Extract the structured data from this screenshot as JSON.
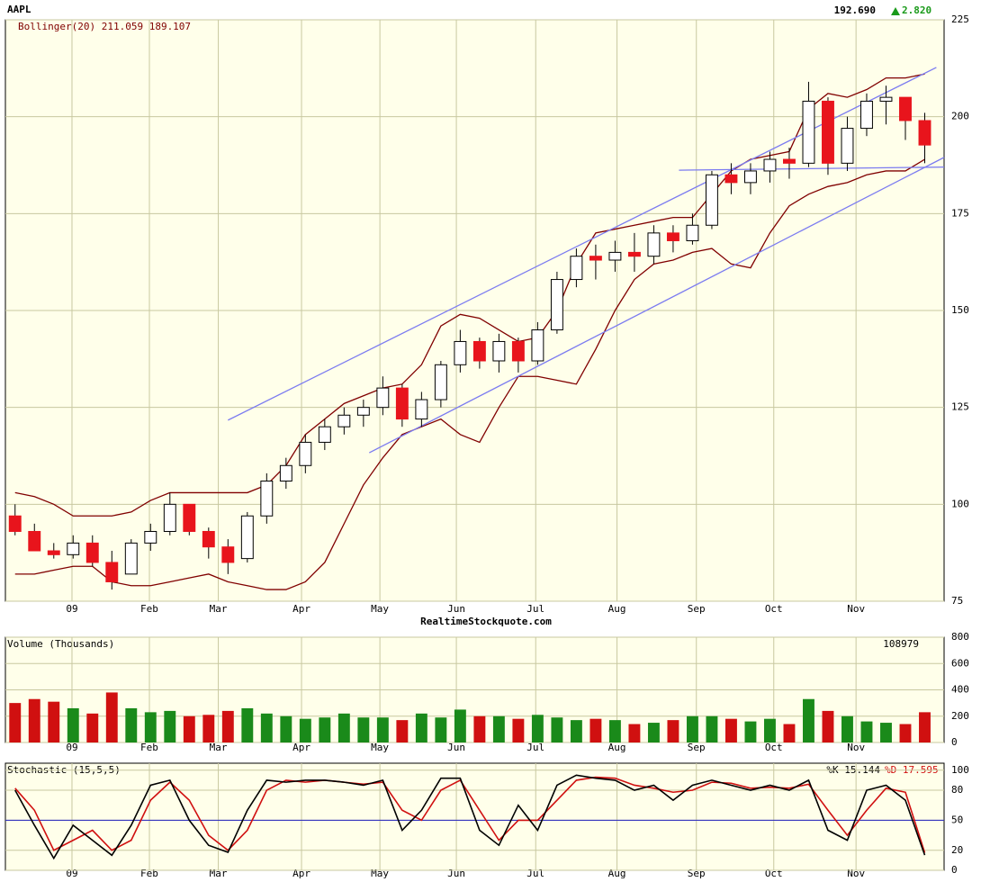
{
  "chart_data": [
    {
      "type": "candlestick",
      "symbol": "AAPL",
      "last": "192.690",
      "change": "2.820",
      "indicator": "Bollinger(20) 211.059 189.107",
      "source": "RealtimeStockquote.com",
      "xlim": [
        0,
        48.5
      ],
      "xticks": [
        {
          "value": 3.44,
          "label": "09"
        },
        {
          "value": 7.44,
          "label": "Feb"
        },
        {
          "value": 11.0,
          "label": "Mar"
        },
        {
          "value": 15.3,
          "label": "Apr"
        },
        {
          "value": 19.35,
          "label": "May"
        },
        {
          "value": 23.3,
          "label": "Jun"
        },
        {
          "value": 27.4,
          "label": "Jul"
        },
        {
          "value": 31.6,
          "label": "Aug"
        },
        {
          "value": 35.7,
          "label": "Sep"
        },
        {
          "value": 39.7,
          "label": "Oct"
        },
        {
          "value": 43.95,
          "label": "Nov"
        }
      ],
      "ylim": [
        75,
        225
      ],
      "yticks": [
        75,
        100,
        125,
        150,
        175,
        200,
        225
      ],
      "grid": true,
      "open": [
        97,
        93,
        88,
        87,
        90,
        85,
        82,
        90,
        93,
        100,
        93,
        89,
        86,
        97,
        106,
        110,
        116,
        120,
        123,
        125,
        130,
        122,
        127,
        136,
        142,
        137,
        142,
        137,
        145,
        158,
        164,
        163,
        165,
        164,
        170,
        168,
        172,
        185,
        183,
        186,
        189,
        188,
        204,
        188,
        197,
        204,
        205,
        199
      ],
      "high": [
        100,
        95,
        90,
        92,
        92,
        88,
        91,
        95,
        103,
        100,
        94,
        91,
        98,
        108,
        112,
        118,
        122,
        125,
        127,
        133,
        131,
        129,
        137,
        145,
        143,
        144,
        143,
        147,
        160,
        166,
        167,
        168,
        170,
        172,
        172,
        175,
        186,
        188,
        188,
        191,
        192,
        209,
        205,
        200,
        206,
        208,
        205,
        201
      ],
      "low": [
        92,
        88,
        86,
        86,
        84,
        78,
        82,
        88,
        92,
        92,
        86,
        82,
        85,
        95,
        104,
        108,
        114,
        118,
        120,
        123,
        120,
        120,
        125,
        134,
        135,
        134,
        134,
        136,
        144,
        156,
        158,
        160,
        160,
        162,
        165,
        167,
        171,
        180,
        180,
        183,
        184,
        187,
        185,
        186,
        195,
        198,
        194,
        188
      ],
      "close": [
        93,
        88,
        87,
        90,
        85,
        80,
        90,
        93,
        100,
        93,
        89,
        85,
        97,
        106,
        110,
        116,
        120,
        123,
        125,
        130,
        122,
        127,
        136,
        142,
        137,
        142,
        137,
        145,
        158,
        164,
        163,
        165,
        164,
        170,
        168,
        172,
        185,
        183,
        186,
        189,
        188,
        204,
        188,
        197,
        204,
        205,
        199,
        192.69
      ],
      "up_color": "#ffffff",
      "down_color": "#e8141c",
      "bands": {
        "color": "#800000",
        "upper": [
          103,
          102,
          100,
          97,
          97,
          97,
          98,
          101,
          103,
          103,
          103,
          103,
          103,
          105,
          110,
          118,
          122,
          126,
          128,
          130,
          131,
          136,
          146,
          149,
          148,
          145,
          142,
          143,
          150,
          162,
          170,
          171,
          172,
          173,
          174,
          174,
          180,
          186,
          189,
          190,
          191,
          202,
          206,
          205,
          207,
          210,
          210,
          211
        ],
        "lower": [
          82,
          82,
          83,
          84,
          84,
          80,
          79,
          79,
          80,
          81,
          82,
          80,
          79,
          78,
          78,
          80,
          85,
          95,
          105,
          112,
          118,
          120,
          122,
          118,
          116,
          125,
          133,
          133,
          132,
          131,
          140,
          150,
          158,
          162,
          163,
          165,
          166,
          162,
          161,
          170,
          177,
          180,
          182,
          183,
          185,
          186,
          186,
          189
        ]
      },
      "trend_lines": {
        "color": "#7b7bf0",
        "lines": [
          {
            "x": [
              11.5,
              48.1
            ],
            "y": [
              121.7,
              212.7
            ]
          },
          {
            "x": [
              18.8,
              48.5
            ],
            "y": [
              113.3,
              189.5
            ]
          },
          {
            "x": [
              34.8,
              48.5
            ],
            "y": [
              186.2,
              187
            ]
          }
        ]
      }
    },
    {
      "type": "bar",
      "title": "Volume (Thousands)",
      "last": "108979",
      "xlim": [
        0,
        48.5
      ],
      "xticks": [
        {
          "value": 3.44,
          "label": "09"
        },
        {
          "value": 7.44,
          "label": "Feb"
        },
        {
          "value": 11.0,
          "label": "Mar"
        },
        {
          "value": 15.3,
          "label": "Apr"
        },
        {
          "value": 19.35,
          "label": "May"
        },
        {
          "value": 23.3,
          "label": "Jun"
        },
        {
          "value": 27.4,
          "label": "Jul"
        },
        {
          "value": 31.6,
          "label": "Aug"
        },
        {
          "value": 35.7,
          "label": "Sep"
        },
        {
          "value": 39.7,
          "label": "Oct"
        },
        {
          "value": 43.95,
          "label": "Nov"
        }
      ],
      "ylim": [
        0,
        800
      ],
      "yticks": [
        0,
        200,
        400,
        600,
        800
      ],
      "grid": true,
      "values": [
        300,
        330,
        310,
        260,
        220,
        380,
        260,
        230,
        240,
        200,
        210,
        240,
        260,
        220,
        200,
        180,
        190,
        220,
        190,
        190,
        170,
        220,
        190,
        250,
        200,
        200,
        180,
        210,
        190,
        170,
        180,
        170,
        140,
        150,
        170,
        200,
        200,
        180,
        160,
        180,
        140,
        330,
        240,
        200,
        160,
        150,
        140,
        230
      ],
      "up_color": "#1a8a1a",
      "down_color": "#d01010"
    },
    {
      "type": "line",
      "title": "Stochastic (15,5,5)",
      "k_label": "%K 15.144",
      "d_label": "%D 17.595",
      "xlim": [
        0,
        48.5
      ],
      "xticks": [
        {
          "value": 3.44,
          "label": "09"
        },
        {
          "value": 7.44,
          "label": "Feb"
        },
        {
          "value": 11.0,
          "label": "Mar"
        },
        {
          "value": 15.3,
          "label": "Apr"
        },
        {
          "value": 19.35,
          "label": "May"
        },
        {
          "value": 23.3,
          "label": "Jun"
        },
        {
          "value": 27.4,
          "label": "Jul"
        },
        {
          "value": 31.6,
          "label": "Aug"
        },
        {
          "value": 35.7,
          "label": "Sep"
        },
        {
          "value": 39.7,
          "label": "Oct"
        },
        {
          "value": 43.95,
          "label": "Nov"
        }
      ],
      "ylim": [
        0,
        107
      ],
      "yticks": [
        0,
        20,
        50,
        80,
        100
      ],
      "grid": true,
      "hline": 50,
      "hline_color": "#2020c0",
      "series": [
        {
          "color": "#000000",
          "values": [
            80,
            45,
            12,
            45,
            30,
            15,
            45,
            85,
            90,
            50,
            25,
            18,
            60,
            90,
            88,
            90,
            90,
            88,
            85,
            90,
            40,
            60,
            92,
            92,
            40,
            25,
            65,
            40,
            85,
            95,
            92,
            90,
            80,
            85,
            70,
            85,
            90,
            85,
            80,
            85,
            80,
            90,
            40,
            30,
            80,
            85,
            70,
            15.144
          ]
        },
        {
          "color": "#d01010",
          "values": [
            82,
            60,
            20,
            30,
            40,
            20,
            30,
            70,
            88,
            70,
            35,
            20,
            40,
            80,
            90,
            88,
            90,
            88,
            86,
            88,
            60,
            50,
            80,
            90,
            60,
            30,
            50,
            50,
            70,
            90,
            93,
            92,
            85,
            82,
            78,
            80,
            88,
            87,
            82,
            83,
            82,
            86,
            60,
            35,
            60,
            82,
            78,
            17.595
          ]
        }
      ]
    }
  ]
}
